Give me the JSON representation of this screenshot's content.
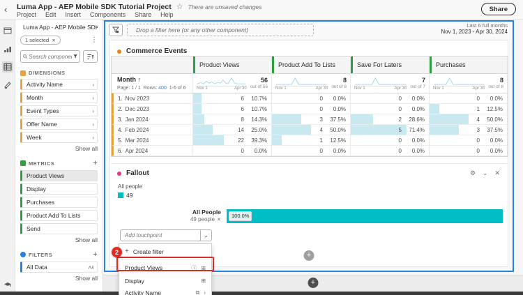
{
  "colors": {
    "teal": "#00bdc6",
    "cyanbar": "#c8e9f0",
    "orange": "#e8a33d",
    "green": "#2f9e44",
    "blue": "#2680eb",
    "red": "#dd2c25"
  },
  "icons": {
    "back": "‹",
    "star": "☆",
    "dots": "⋮",
    "chevron_right": "›",
    "gear": "⚙",
    "chevron_down": "⌄",
    "close": "✕",
    "plus": "+",
    "remove": "✕",
    "info": "ⓘ",
    "segment_add": "⊞",
    "layers": "⧉",
    "arrow_up": "↑"
  },
  "top_bar": {
    "title": "Luma App - AEP Mobile SDK Tutorial Project",
    "unsaved": "There are unsaved changes",
    "menus": [
      "Project",
      "Edit",
      "Insert",
      "Components",
      "Share",
      "Help"
    ],
    "share_button": "Share"
  },
  "sidebar": {
    "project_label": "Luma App - AEP Mobile SDK Tutor...",
    "selected_chip": "1 selected",
    "search_placeholder": "Search component",
    "dimensions": {
      "title": "DIMENSIONS",
      "items": [
        "Activity Name",
        "Month",
        "Event Types",
        "Offer Name",
        "Week"
      ],
      "show_all": "Show all"
    },
    "metrics": {
      "title": "METRICS",
      "items": [
        "Product Views",
        "Display",
        "Purchases",
        "Product Add To Lists",
        "Send"
      ],
      "show_all": "Show all"
    },
    "filters": {
      "title": "FILTERS",
      "items": [
        "All Data"
      ],
      "show_all": "Show all"
    }
  },
  "panel": {
    "drop_zone": "Drop a filter here (or any other component)",
    "date_range_line1": "Last 6 full months",
    "date_range_line2": "Nov 1, 2023 - Apr 30, 2024"
  },
  "table": {
    "title": "Commerce Events",
    "dimension_header": "Month",
    "pagination": {
      "page": "Page: 1 / 1",
      "rows_label": "Rows:",
      "rows": "400",
      "range": "1-6 of 6"
    },
    "spark_start": "Nov 1",
    "spark_end": "Apr 30",
    "columns": [
      {
        "label": "Product Views",
        "total": "56",
        "out_of": "out of 56"
      },
      {
        "label": "Product Add To Lists",
        "total": "8",
        "out_of": "out of 8"
      },
      {
        "label": "Save For Laters",
        "total": "7",
        "out_of": "out of 7"
      },
      {
        "label": "Purchases",
        "total": "8",
        "out_of": "out of 8"
      }
    ],
    "rows": [
      {
        "n": "1.",
        "label": "Nov 2023",
        "cells": [
          {
            "v": "6",
            "p": "10.7%"
          },
          {
            "v": "0",
            "p": "0.0%"
          },
          {
            "v": "0",
            "p": "0.0%"
          },
          {
            "v": "0",
            "p": "0.0%"
          }
        ]
      },
      {
        "n": "2.",
        "label": "Dec 2023",
        "cells": [
          {
            "v": "6",
            "p": "10.7%"
          },
          {
            "v": "0",
            "p": "0.0%"
          },
          {
            "v": "0",
            "p": "0.0%"
          },
          {
            "v": "1",
            "p": "12.5%"
          }
        ]
      },
      {
        "n": "3.",
        "label": "Jan 2024",
        "cells": [
          {
            "v": "8",
            "p": "14.3%"
          },
          {
            "v": "3",
            "p": "37.5%"
          },
          {
            "v": "2",
            "p": "28.6%"
          },
          {
            "v": "4",
            "p": "50.0%"
          }
        ]
      },
      {
        "n": "4.",
        "label": "Feb 2024",
        "cells": [
          {
            "v": "14",
            "p": "25.0%"
          },
          {
            "v": "4",
            "p": "50.0%"
          },
          {
            "v": "5",
            "p": "71.4%"
          },
          {
            "v": "3",
            "p": "37.5%"
          }
        ]
      },
      {
        "n": "5.",
        "label": "Mar 2024",
        "cells": [
          {
            "v": "22",
            "p": "39.3%"
          },
          {
            "v": "1",
            "p": "12.5%"
          },
          {
            "v": "0",
            "p": "0.0%"
          },
          {
            "v": "0",
            "p": "0.0%"
          }
        ]
      },
      {
        "n": "6.",
        "label": "Apr 2024",
        "cells": [
          {
            "v": "0",
            "p": "0.0%"
          },
          {
            "v": "0",
            "p": "0.0%"
          },
          {
            "v": "0",
            "p": "0.0%"
          },
          {
            "v": "0",
            "p": "0.0%"
          }
        ]
      }
    ]
  },
  "fallout": {
    "title": "Fallout",
    "legend_label": "All people",
    "legend_value": "49",
    "bar_label": "All People",
    "bar_sub": "49 people",
    "bar_pct": "100.0%",
    "touchpoint_placeholder": "Add touchpoint",
    "menu": {
      "create_filter": "Create filter",
      "items": [
        {
          "label": "Product Views"
        },
        {
          "label": "Display"
        },
        {
          "label": "Activity Name"
        }
      ]
    }
  },
  "annotation": {
    "badge": "2"
  }
}
